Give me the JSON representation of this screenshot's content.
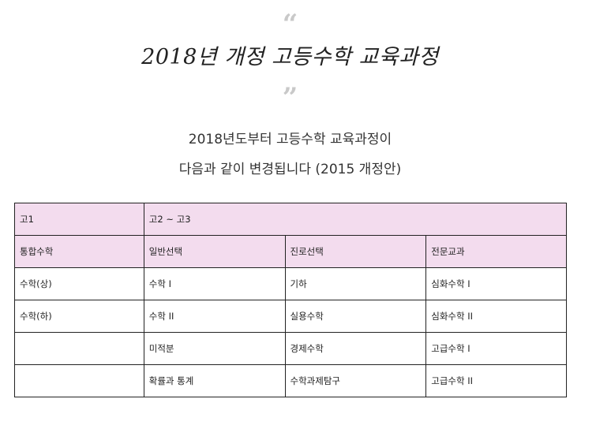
{
  "header": {
    "open_quote": "“",
    "title": "2018년 개정 고등수학 교육과정",
    "close_quote": "”"
  },
  "intro": {
    "line1": "2018년도부터 고등수학 교육과정이",
    "line2": "다음과 같이 변경됩니다 (2015 개정안)"
  },
  "table": {
    "grade_row": [
      "고1",
      "고2 ~ 고3"
    ],
    "category_row": [
      "통합수학",
      "일반선택",
      "진로선택",
      "전문교과"
    ],
    "rows": [
      [
        "수학(상)",
        "수학 I",
        "기하",
        "심화수학 I"
      ],
      [
        "수학(하)",
        "수학 II",
        "실용수학",
        "심화수학 II"
      ],
      [
        "",
        "미적분",
        "경제수학",
        "고급수학 I"
      ],
      [
        "",
        "확률과 통계",
        "수학과제탐구",
        "고급수학 II"
      ]
    ]
  },
  "colors": {
    "header_row_bg": "#f3dcee",
    "border": "#222222",
    "quote_mark": "#c9c9c9"
  }
}
